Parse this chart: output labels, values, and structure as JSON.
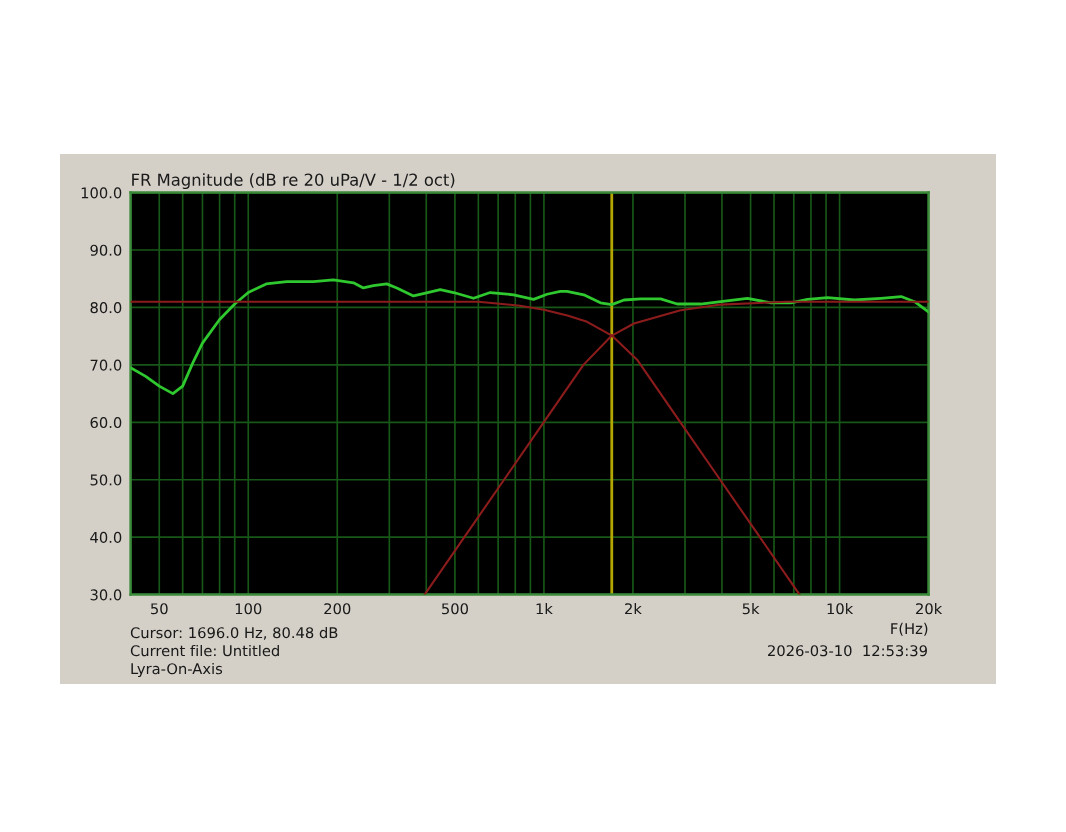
{
  "chart_data": {
    "type": "line",
    "title": "FR Magnitude (dB re 20 uPa/V - 1/2 oct)",
    "xlabel": "F(Hz)",
    "annotations": [
      "Cursor: 1696.0 Hz, 80.48 dB",
      "Current file: Untitled",
      "Lyra-On-Axis",
      "2026-03-10  12:53:39"
    ],
    "log": "x",
    "xlim": [
      40,
      20000
    ],
    "xticks": [
      {
        "value": 50,
        "label": "50"
      },
      {
        "value": 60,
        "label": null
      },
      {
        "value": 70,
        "label": null
      },
      {
        "value": 80,
        "label": null
      },
      {
        "value": 90,
        "label": null
      },
      {
        "value": 100,
        "label": "100"
      },
      {
        "value": 200,
        "label": "200"
      },
      {
        "value": 300,
        "label": null
      },
      {
        "value": 400,
        "label": null
      },
      {
        "value": 500,
        "label": "500"
      },
      {
        "value": 600,
        "label": null
      },
      {
        "value": 700,
        "label": null
      },
      {
        "value": 800,
        "label": null
      },
      {
        "value": 900,
        "label": null
      },
      {
        "value": 1000,
        "label": "1k"
      },
      {
        "value": 2000,
        "label": "2k"
      },
      {
        "value": 3000,
        "label": null
      },
      {
        "value": 4000,
        "label": null
      },
      {
        "value": 5000,
        "label": "5k"
      },
      {
        "value": 6000,
        "label": null
      },
      {
        "value": 7000,
        "label": null
      },
      {
        "value": 8000,
        "label": null
      },
      {
        "value": 9000,
        "label": null
      },
      {
        "value": 10000,
        "label": "10k"
      },
      {
        "value": 20000,
        "label": "20k"
      }
    ],
    "ylim": [
      30,
      100
    ],
    "yticks": [
      {
        "value": 30,
        "label": "30.0"
      },
      {
        "value": 40,
        "label": "40.0"
      },
      {
        "value": 50,
        "label": "50.0"
      },
      {
        "value": 60,
        "label": "60.0"
      },
      {
        "value": 70,
        "label": "70.0"
      },
      {
        "value": 80,
        "label": "80.0"
      },
      {
        "value": 90,
        "label": "90.0"
      },
      {
        "value": 100,
        "label": "100.0"
      }
    ],
    "grid": true,
    "series": [
      {
        "color": "#2fc82f",
        "x": [
          40,
          45,
          50,
          55.6,
          60,
          65,
          70,
          80,
          90,
          100,
          115,
          135,
          166,
          194,
          227,
          245,
          265,
          294,
          318,
          362,
          391,
          446,
          495,
          578,
          658,
          790,
          923,
          1024,
          1136,
          1197,
          1364,
          1553,
          1697,
          1865,
          2123,
          2481,
          2824,
          3390,
          3963,
          4877,
          5856,
          6845,
          7790,
          9106,
          11230,
          13810,
          16150,
          17940,
          20000
        ],
        "values": [
          69.5,
          68.0,
          66.3,
          65.0,
          66.3,
          70.4,
          73.8,
          77.9,
          80.6,
          82.6,
          84.1,
          84.5,
          84.5,
          84.8,
          84.3,
          83.4,
          83.8,
          84.1,
          83.4,
          82.0,
          82.4,
          83.1,
          82.6,
          81.6,
          82.6,
          82.2,
          81.4,
          82.3,
          82.8,
          82.8,
          82.2,
          80.8,
          80.5,
          81.3,
          81.5,
          81.5,
          80.6,
          80.6,
          81.0,
          81.6,
          80.8,
          80.8,
          81.4,
          81.7,
          81.3,
          81.6,
          81.9,
          81.0,
          79.2
        ]
      },
      {
        "color": "#8c1c1c",
        "x": [
          40,
          600,
          830,
          1000,
          1200,
          1400,
          1697,
          2066,
          2895,
          3945,
          5374,
          7318
        ],
        "values": [
          81.0,
          81.0,
          80.3,
          79.6,
          78.6,
          77.5,
          75.1,
          70.9,
          60.0,
          50.0,
          40.0,
          30.0
        ]
      },
      {
        "color": "#8c1c1c",
        "x": [
          395,
          538,
          733,
          998,
          1360,
          1697,
          2016,
          2899,
          3963,
          6660,
          20000
        ],
        "values": [
          30.0,
          40.0,
          50.0,
          60.0,
          70.0,
          75.1,
          77.2,
          79.5,
          80.5,
          81.0,
          81.0
        ]
      }
    ],
    "ref_lines": [
      {
        "axis": "x",
        "value": 1696,
        "color": "#b4a800"
      }
    ]
  }
}
